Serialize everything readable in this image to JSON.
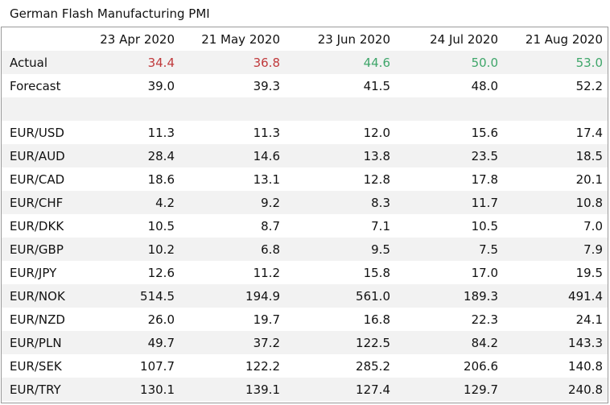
{
  "title": "German Flash Manufacturing PMI",
  "dates": [
    "23 Apr 2020",
    "21 May 2020",
    "23 Jun 2020",
    "24 Jul 2020",
    "21 Aug 2020"
  ],
  "actual": {
    "label": "Actual",
    "values": [
      "34.4",
      "36.8",
      "44.6",
      "50.0",
      "53.0"
    ],
    "colors": [
      "#c0393b",
      "#c0393b",
      "#3fa66a",
      "#3fa66a",
      "#3fa66a"
    ]
  },
  "forecast": {
    "label": "Forecast",
    "values": [
      "39.0",
      "39.3",
      "41.5",
      "48.0",
      "52.2"
    ]
  },
  "pairs": [
    {
      "label": "EUR/USD",
      "values": [
        "11.3",
        "11.3",
        "12.0",
        "15.6",
        "17.4"
      ]
    },
    {
      "label": "EUR/AUD",
      "values": [
        "28.4",
        "14.6",
        "13.8",
        "23.5",
        "18.5"
      ]
    },
    {
      "label": "EUR/CAD",
      "values": [
        "18.6",
        "13.1",
        "12.8",
        "17.8",
        "20.1"
      ]
    },
    {
      "label": "EUR/CHF",
      "values": [
        "4.2",
        "9.2",
        "8.3",
        "11.7",
        "10.8"
      ]
    },
    {
      "label": "EUR/DKK",
      "values": [
        "10.5",
        "8.7",
        "7.1",
        "10.5",
        "7.0"
      ]
    },
    {
      "label": "EUR/GBP",
      "values": [
        "10.2",
        "6.8",
        "9.5",
        "7.5",
        "7.9"
      ]
    },
    {
      "label": "EUR/JPY",
      "values": [
        "12.6",
        "11.2",
        "15.8",
        "17.0",
        "19.5"
      ]
    },
    {
      "label": "EUR/NOK",
      "values": [
        "514.5",
        "194.9",
        "561.0",
        "189.3",
        "491.4"
      ]
    },
    {
      "label": "EUR/NZD",
      "values": [
        "26.0",
        "19.7",
        "16.8",
        "22.3",
        "24.1"
      ]
    },
    {
      "label": "EUR/PLN",
      "values": [
        "49.7",
        "37.2",
        "122.5",
        "84.2",
        "143.3"
      ]
    },
    {
      "label": "EUR/SEK",
      "values": [
        "107.7",
        "122.2",
        "285.2",
        "206.6",
        "140.8"
      ]
    },
    {
      "label": "EUR/TRY",
      "values": [
        "130.1",
        "139.1",
        "127.4",
        "129.7",
        "240.8"
      ]
    }
  ]
}
